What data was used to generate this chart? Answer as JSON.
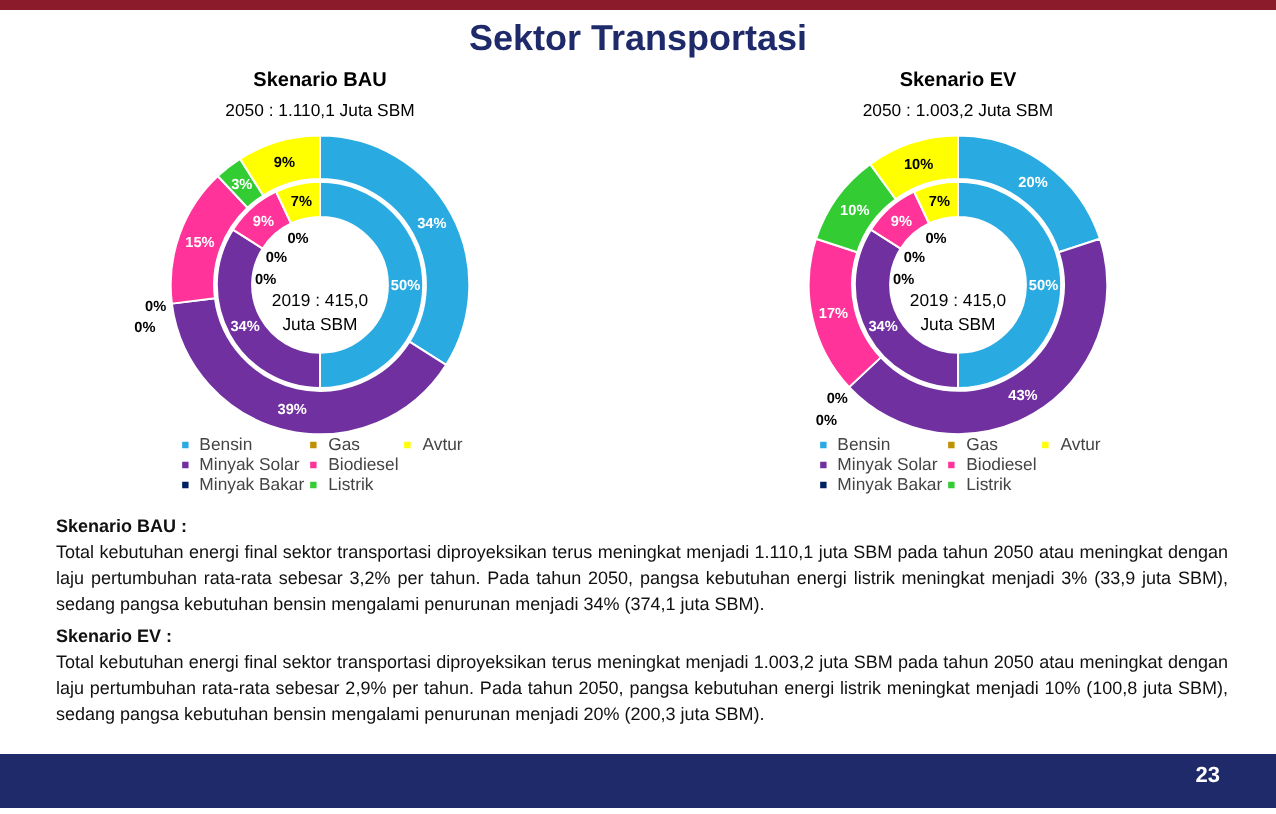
{
  "chart_data": [
    {
      "type": "other",
      "title": "Sektor Transportasi"
    },
    {
      "type": "donut",
      "title": "Skenario BAU",
      "subtitle": "2050 : 1.110,1 Juta SBM",
      "categories": [
        "Bensin",
        "Minyak Solar",
        "Minyak Bakar",
        "Gas",
        "Biodiesel",
        "Listrik",
        "Avtur"
      ],
      "colors": [
        "#29abe2",
        "#7030a0",
        "#002060",
        "#bf9000",
        "#ff3399",
        "#33cc33",
        "#ffff00"
      ],
      "series": [
        {
          "values": [
            50,
            34,
            0,
            0,
            9,
            0,
            7
          ],
          "value_labels": [
            "50%",
            "34%",
            "0%",
            "0%",
            "9%",
            "0%",
            "7%"
          ]
        },
        {
          "values": [
            34,
            39,
            0,
            0,
            15,
            3,
            9
          ],
          "value_labels": [
            "34%",
            "39%",
            "0%",
            "0%",
            "15%",
            "3%",
            "9%"
          ]
        }
      ],
      "annotations": [
        "2019 : 415,0\nJuta SBM"
      ],
      "legend": "bottom"
    },
    {
      "type": "donut",
      "title": "Skenario EV",
      "subtitle": "2050 : 1.003,2 Juta SBM",
      "categories": [
        "Bensin",
        "Minyak Solar",
        "Minyak Bakar",
        "Gas",
        "Biodiesel",
        "Listrik",
        "Avtur"
      ],
      "colors": [
        "#29abe2",
        "#7030a0",
        "#002060",
        "#bf9000",
        "#ff3399",
        "#33cc33",
        "#ffff00"
      ],
      "series": [
        {
          "values": [
            50,
            34,
            0,
            0,
            9,
            0,
            7
          ],
          "value_labels": [
            "50%",
            "34%",
            "0%",
            "0%",
            "9%",
            "0%",
            "7%"
          ]
        },
        {
          "values": [
            20,
            43,
            0,
            0,
            17,
            10,
            10
          ],
          "value_labels": [
            "20%",
            "43%",
            "0%",
            "0%",
            "17%",
            "10%",
            "10%"
          ]
        }
      ],
      "annotations": [
        "2019 : 415,0\nJuta SBM"
      ],
      "legend": "bottom"
    },
    {
      "type": "other",
      "annotations": [
        "Skenario BAU :",
        "Total kebutuhan energi final sektor transportasi diproyeksikan terus meningkat menjadi 1.110,1 juta SBM pada tahun 2050 atau meningkat dengan laju pertumbuhan rata-rata sebesar 3,2% per tahun. Pada tahun 2050,  pangsa kebutuhan energi listrik meningkat menjadi  3% (33,9 juta SBM), sedang pangsa kebutuhan bensin mengalami penurunan menjadi 34% (374,1 juta SBM).",
        "Skenario EV :",
        "Total kebutuhan energi final sektor transportasi diproyeksikan terus meningkat menjadi 1.003,2 juta SBM pada tahun 2050 atau meningkat dengan laju pertumbuhan rata-rata sebesar 2,9% per tahun. Pada tahun 2050, pangsa kebutuhan energi listrik meningkat menjadi 10% (100,8 juta SBM), sedang pangsa kebutuhan bensin mengalami penurunan menjadi 20% (200,3 juta SBM)."
      ]
    },
    {
      "type": "other",
      "annotations": [
        "23"
      ]
    }
  ]
}
